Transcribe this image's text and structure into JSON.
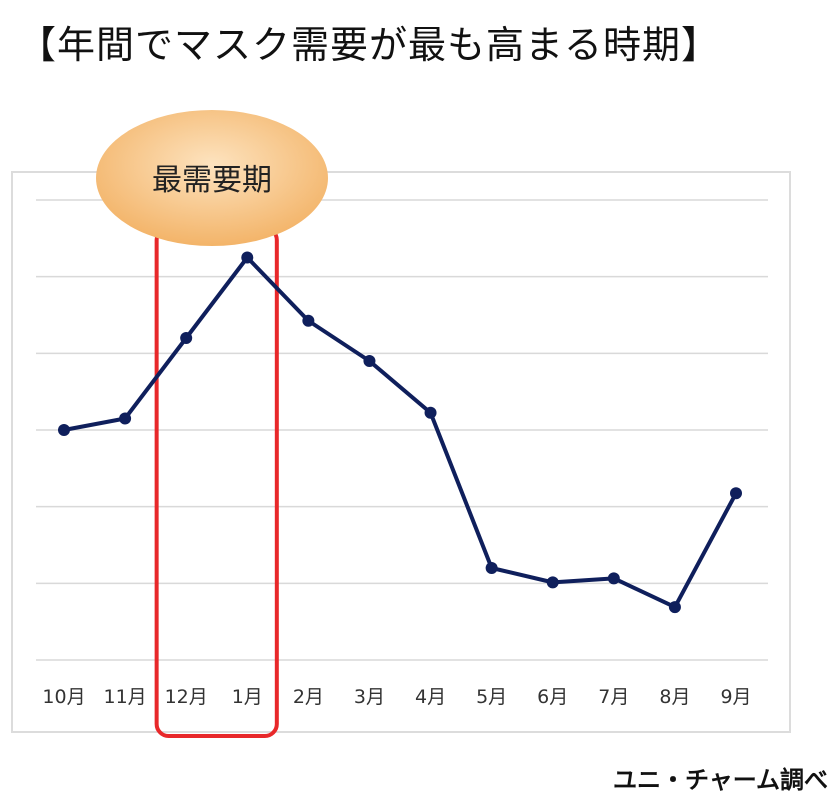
{
  "title": "【年間でマスク需要が最も高まる時期】",
  "source": "ユニ・チャーム調べ",
  "highlight": {
    "label": "最需要期",
    "months": [
      "12月",
      "1月"
    ],
    "bubble_color": "#f6c37f",
    "box_color": "#e8282a"
  },
  "colors": {
    "line": "#0f1f5c",
    "grid": "#d9d9d9"
  },
  "chart_data": {
    "type": "line",
    "title": "",
    "xlabel": "",
    "ylabel": "",
    "categories": [
      "10月",
      "11月",
      "12月",
      "1月",
      "2月",
      "3月",
      "4月",
      "5月",
      "6月",
      "7月",
      "8月",
      "9月"
    ],
    "values": [
      3.5,
      3.7,
      5.1,
      6.5,
      5.4,
      4.7,
      3.8,
      1.1,
      0.85,
      0.92,
      0.42,
      2.4
    ],
    "ylim": [
      -0.5,
      7.5
    ],
    "gridlines": 7,
    "y_tick_labels_shown": false,
    "grid": true,
    "legend": "none"
  }
}
